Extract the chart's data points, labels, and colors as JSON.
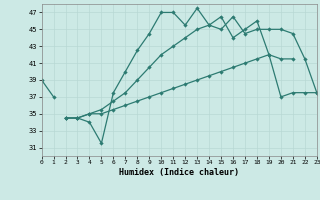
{
  "title": "",
  "xlabel": "Humidex (Indice chaleur)",
  "xlim": [
    0,
    23
  ],
  "ylim": [
    30,
    48
  ],
  "xticks": [
    0,
    1,
    2,
    3,
    4,
    5,
    6,
    7,
    8,
    9,
    10,
    11,
    12,
    13,
    14,
    15,
    16,
    17,
    18,
    19,
    20,
    21,
    22,
    23
  ],
  "yticks": [
    31,
    33,
    35,
    37,
    39,
    41,
    43,
    45,
    47
  ],
  "bg_color": "#cce9e5",
  "line_color": "#2d7b72",
  "grid_color": "#b8d8d4",
  "series": [
    {
      "x": [
        0,
        1
      ],
      "y": [
        39,
        37
      ]
    },
    {
      "x": [
        2,
        3,
        4,
        5,
        6,
        7,
        8,
        9,
        10,
        11,
        12,
        13,
        14,
        15,
        16,
        17,
        18,
        19,
        20,
        21,
        22,
        23
      ],
      "y": [
        34.5,
        34.5,
        34,
        31.5,
        37.5,
        40,
        42.5,
        44.5,
        47,
        47,
        45.5,
        47.5,
        45.5,
        45,
        46.5,
        44.5,
        45,
        45,
        45,
        44.5,
        41.5,
        37.5
      ]
    },
    {
      "x": [
        2,
        3,
        4,
        5,
        6,
        7,
        8,
        9,
        10,
        11,
        12,
        13,
        14,
        15,
        16,
        17,
        18,
        19,
        20,
        21
      ],
      "y": [
        34.5,
        34.5,
        35,
        35.5,
        36.5,
        37.5,
        39,
        40.5,
        42,
        43,
        44,
        45,
        45.5,
        46.5,
        44,
        45,
        46,
        42,
        41.5,
        41.5
      ]
    },
    {
      "x": [
        2,
        3,
        4,
        5,
        6,
        7,
        8,
        9,
        10,
        11,
        12,
        13,
        14,
        15,
        16,
        17,
        18,
        19,
        20,
        21,
        22,
        23
      ],
      "y": [
        34.5,
        34.5,
        35,
        35,
        35.5,
        36,
        36.5,
        37,
        37.5,
        38,
        38.5,
        39,
        39.5,
        40,
        40.5,
        41,
        41.5,
        42,
        37,
        37.5,
        37.5,
        37.5
      ]
    }
  ]
}
